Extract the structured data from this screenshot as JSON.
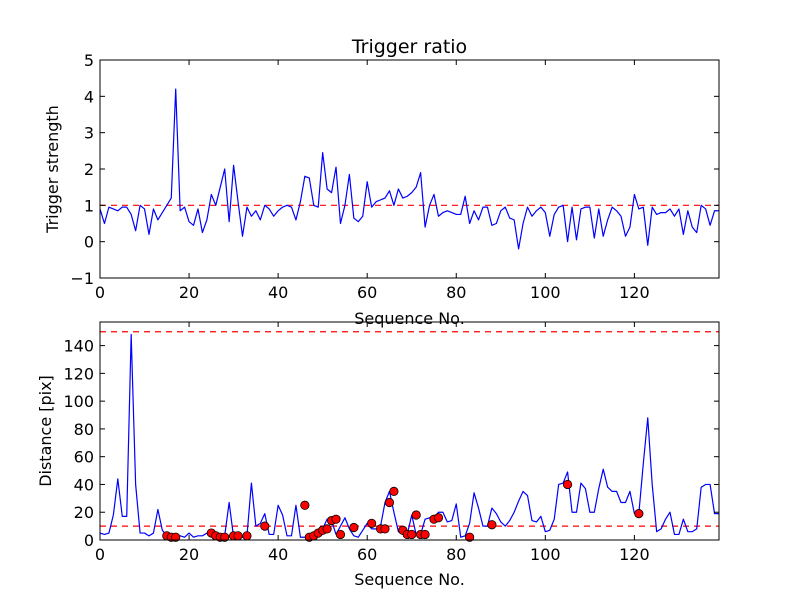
{
  "colors": {
    "line": "#0000ff",
    "threshold": "#ff0000",
    "marker_fill": "#ff0000",
    "marker_edge": "#000000",
    "frame": "#000000",
    "background": "#ffffff"
  },
  "chart_data": [
    {
      "type": "line",
      "title": "Trigger ratio",
      "xlabel": "Sequence No.",
      "ylabel": "Trigger strength",
      "xlim": [
        0,
        139
      ],
      "ylim": [
        -1,
        5
      ],
      "xticks": [
        0,
        20,
        40,
        60,
        80,
        100,
        120
      ],
      "xtick_labels": [
        "0",
        "20",
        "40",
        "60",
        "80",
        "100",
        "120"
      ],
      "yticks": [
        -1,
        0,
        1,
        2,
        3,
        4,
        5
      ],
      "ytick_labels": [
        "−1",
        "0",
        "1",
        "2",
        "3",
        "4",
        "5"
      ],
      "thresholds": [
        {
          "y": 1.0,
          "style": "dashed"
        }
      ],
      "series": [
        {
          "name": "trigger strength",
          "x": [
            0,
            1,
            2,
            3,
            4,
            5,
            6,
            7,
            8,
            9,
            10,
            11,
            12,
            13,
            14,
            15,
            16,
            17,
            18,
            19,
            20,
            21,
            22,
            23,
            24,
            25,
            26,
            27,
            28,
            29,
            30,
            31,
            32,
            33,
            34,
            35,
            36,
            37,
            38,
            39,
            40,
            41,
            42,
            43,
            44,
            45,
            46,
            47,
            48,
            49,
            50,
            51,
            52,
            53,
            54,
            55,
            56,
            57,
            58,
            59,
            60,
            61,
            62,
            63,
            64,
            65,
            66,
            67,
            68,
            69,
            70,
            71,
            72,
            73,
            74,
            75,
            76,
            77,
            78,
            79,
            80,
            81,
            82,
            83,
            84,
            85,
            86,
            87,
            88,
            89,
            90,
            91,
            92,
            93,
            94,
            95,
            96,
            97,
            98,
            99,
            100,
            101,
            102,
            103,
            104,
            105,
            106,
            107,
            108,
            109,
            110,
            111,
            112,
            113,
            114,
            115,
            116,
            117,
            118,
            119,
            120,
            121,
            122,
            123,
            124,
            125,
            126,
            127,
            128,
            129,
            130,
            131,
            132,
            133,
            134,
            135,
            136,
            137,
            138,
            139
          ],
          "values": [
            0.9,
            0.5,
            0.95,
            0.9,
            0.85,
            0.95,
            0.95,
            0.75,
            0.3,
            1.0,
            0.9,
            0.2,
            0.9,
            0.6,
            0.8,
            1.0,
            1.2,
            4.2,
            0.85,
            0.95,
            0.55,
            0.45,
            0.9,
            0.25,
            0.6,
            1.3,
            1.0,
            1.5,
            2.0,
            0.55,
            2.1,
            1.1,
            0.15,
            0.95,
            0.7,
            0.85,
            0.6,
            1.0,
            0.9,
            0.7,
            0.85,
            0.95,
            1.0,
            0.95,
            0.6,
            1.1,
            1.8,
            1.75,
            1.0,
            0.95,
            2.45,
            1.45,
            1.35,
            2.05,
            0.5,
            1.0,
            1.85,
            0.65,
            0.55,
            0.7,
            1.65,
            0.95,
            1.1,
            1.15,
            1.2,
            1.4,
            1.0,
            1.45,
            1.2,
            1.25,
            1.35,
            1.5,
            1.9,
            0.4,
            1.0,
            1.3,
            0.7,
            0.8,
            0.85,
            0.8,
            0.75,
            0.75,
            1.25,
            0.5,
            0.85,
            0.6,
            0.95,
            0.95,
            0.45,
            0.5,
            0.85,
            0.95,
            0.65,
            0.6,
            -0.2,
            0.5,
            0.95,
            0.7,
            0.85,
            0.95,
            0.8,
            0.15,
            0.75,
            0.95,
            1.0,
            0.0,
            0.95,
            0.05,
            0.9,
            0.95,
            0.95,
            0.1,
            0.9,
            0.15,
            0.6,
            0.95,
            0.85,
            0.7,
            0.15,
            0.4,
            1.3,
            0.9,
            0.95,
            -0.1,
            0.95,
            0.75,
            0.8,
            0.8,
            0.9,
            0.7,
            0.9,
            0.2,
            0.85,
            0.4,
            0.25,
            1.0,
            0.9,
            0.45,
            0.85,
            0.85
          ]
        }
      ]
    },
    {
      "type": "line",
      "title": "",
      "xlabel": "Sequence No.",
      "ylabel": "Distance [pix]",
      "xlim": [
        0,
        139
      ],
      "ylim": [
        0,
        157
      ],
      "xticks": [
        0,
        20,
        40,
        60,
        80,
        100,
        120
      ],
      "xtick_labels": [
        "0",
        "20",
        "40",
        "60",
        "80",
        "100",
        "120"
      ],
      "yticks": [
        0,
        20,
        40,
        60,
        80,
        100,
        120,
        140
      ],
      "ytick_labels": [
        "0",
        "20",
        "40",
        "60",
        "80",
        "100",
        "120",
        "140"
      ],
      "thresholds": [
        {
          "y": 10,
          "style": "dashed"
        },
        {
          "y": 150,
          "style": "dashed"
        }
      ],
      "series": [
        {
          "name": "distance",
          "x": [
            0,
            1,
            2,
            3,
            4,
            5,
            6,
            7,
            8,
            9,
            10,
            11,
            12,
            13,
            14,
            15,
            16,
            17,
            18,
            19,
            20,
            21,
            22,
            23,
            24,
            25,
            26,
            27,
            28,
            29,
            30,
            31,
            32,
            33,
            34,
            35,
            36,
            37,
            38,
            39,
            40,
            41,
            42,
            43,
            44,
            45,
            46,
            47,
            48,
            49,
            50,
            51,
            52,
            53,
            54,
            55,
            56,
            57,
            58,
            59,
            60,
            61,
            62,
            63,
            64,
            65,
            66,
            67,
            68,
            69,
            70,
            71,
            72,
            73,
            74,
            75,
            76,
            77,
            78,
            79,
            80,
            81,
            82,
            83,
            84,
            85,
            86,
            87,
            88,
            89,
            90,
            91,
            92,
            93,
            94,
            95,
            96,
            97,
            98,
            99,
            100,
            101,
            102,
            103,
            104,
            105,
            106,
            107,
            108,
            109,
            110,
            111,
            112,
            113,
            114,
            115,
            116,
            117,
            118,
            119,
            120,
            121,
            122,
            123,
            124,
            125,
            126,
            127,
            128,
            129,
            130,
            131,
            132,
            133,
            134,
            135,
            136,
            137,
            138,
            139
          ],
          "values": [
            5,
            4,
            5,
            18,
            44,
            17,
            17,
            148,
            40,
            5,
            5,
            3,
            5,
            22,
            7,
            3,
            2,
            2,
            3,
            2,
            5,
            2,
            3,
            3,
            5,
            4,
            2,
            2,
            3,
            27,
            2,
            2,
            2,
            3,
            41,
            10,
            12,
            19,
            4,
            4,
            25,
            18,
            3,
            3,
            25,
            2,
            2,
            3,
            5,
            7,
            8,
            15,
            14,
            4,
            10,
            16,
            8,
            3,
            2,
            7,
            12,
            8,
            8,
            10,
            27,
            35,
            20,
            6,
            4,
            4,
            18,
            4,
            4,
            15,
            16,
            16,
            20,
            20,
            13,
            14,
            26,
            2,
            3,
            12,
            34,
            23,
            10,
            10,
            23,
            19,
            13,
            10,
            14,
            20,
            28,
            35,
            32,
            14,
            13,
            17,
            6,
            7,
            15,
            40,
            41,
            49,
            20,
            20,
            41,
            37,
            20,
            20,
            37,
            51,
            38,
            35,
            35,
            27,
            27,
            35,
            19,
            19,
            55,
            88,
            40,
            6,
            8,
            15,
            20,
            4,
            4,
            15,
            6,
            6,
            8,
            38,
            40,
            40,
            19,
            19
          ],
          "markers": {
            "x": [
              15,
              16,
              17,
              25,
              26,
              27,
              28,
              30,
              31,
              33,
              37,
              46,
              47,
              48,
              49,
              50,
              51,
              52,
              53,
              54,
              57,
              61,
              63,
              64,
              65,
              66,
              68,
              69,
              70,
              71,
              72,
              73,
              75,
              76,
              83,
              88,
              105,
              121
            ],
            "values": [
              3,
              2,
              2,
              5,
              3,
              2,
              2,
              3,
              3,
              3,
              10,
              25,
              2,
              3,
              5,
              7,
              8,
              14,
              15,
              4,
              9,
              12,
              8,
              8,
              27,
              35,
              7,
              4,
              4,
              18,
              4,
              4,
              15,
              16,
              2,
              11,
              40,
              19
            ]
          }
        }
      ]
    }
  ]
}
